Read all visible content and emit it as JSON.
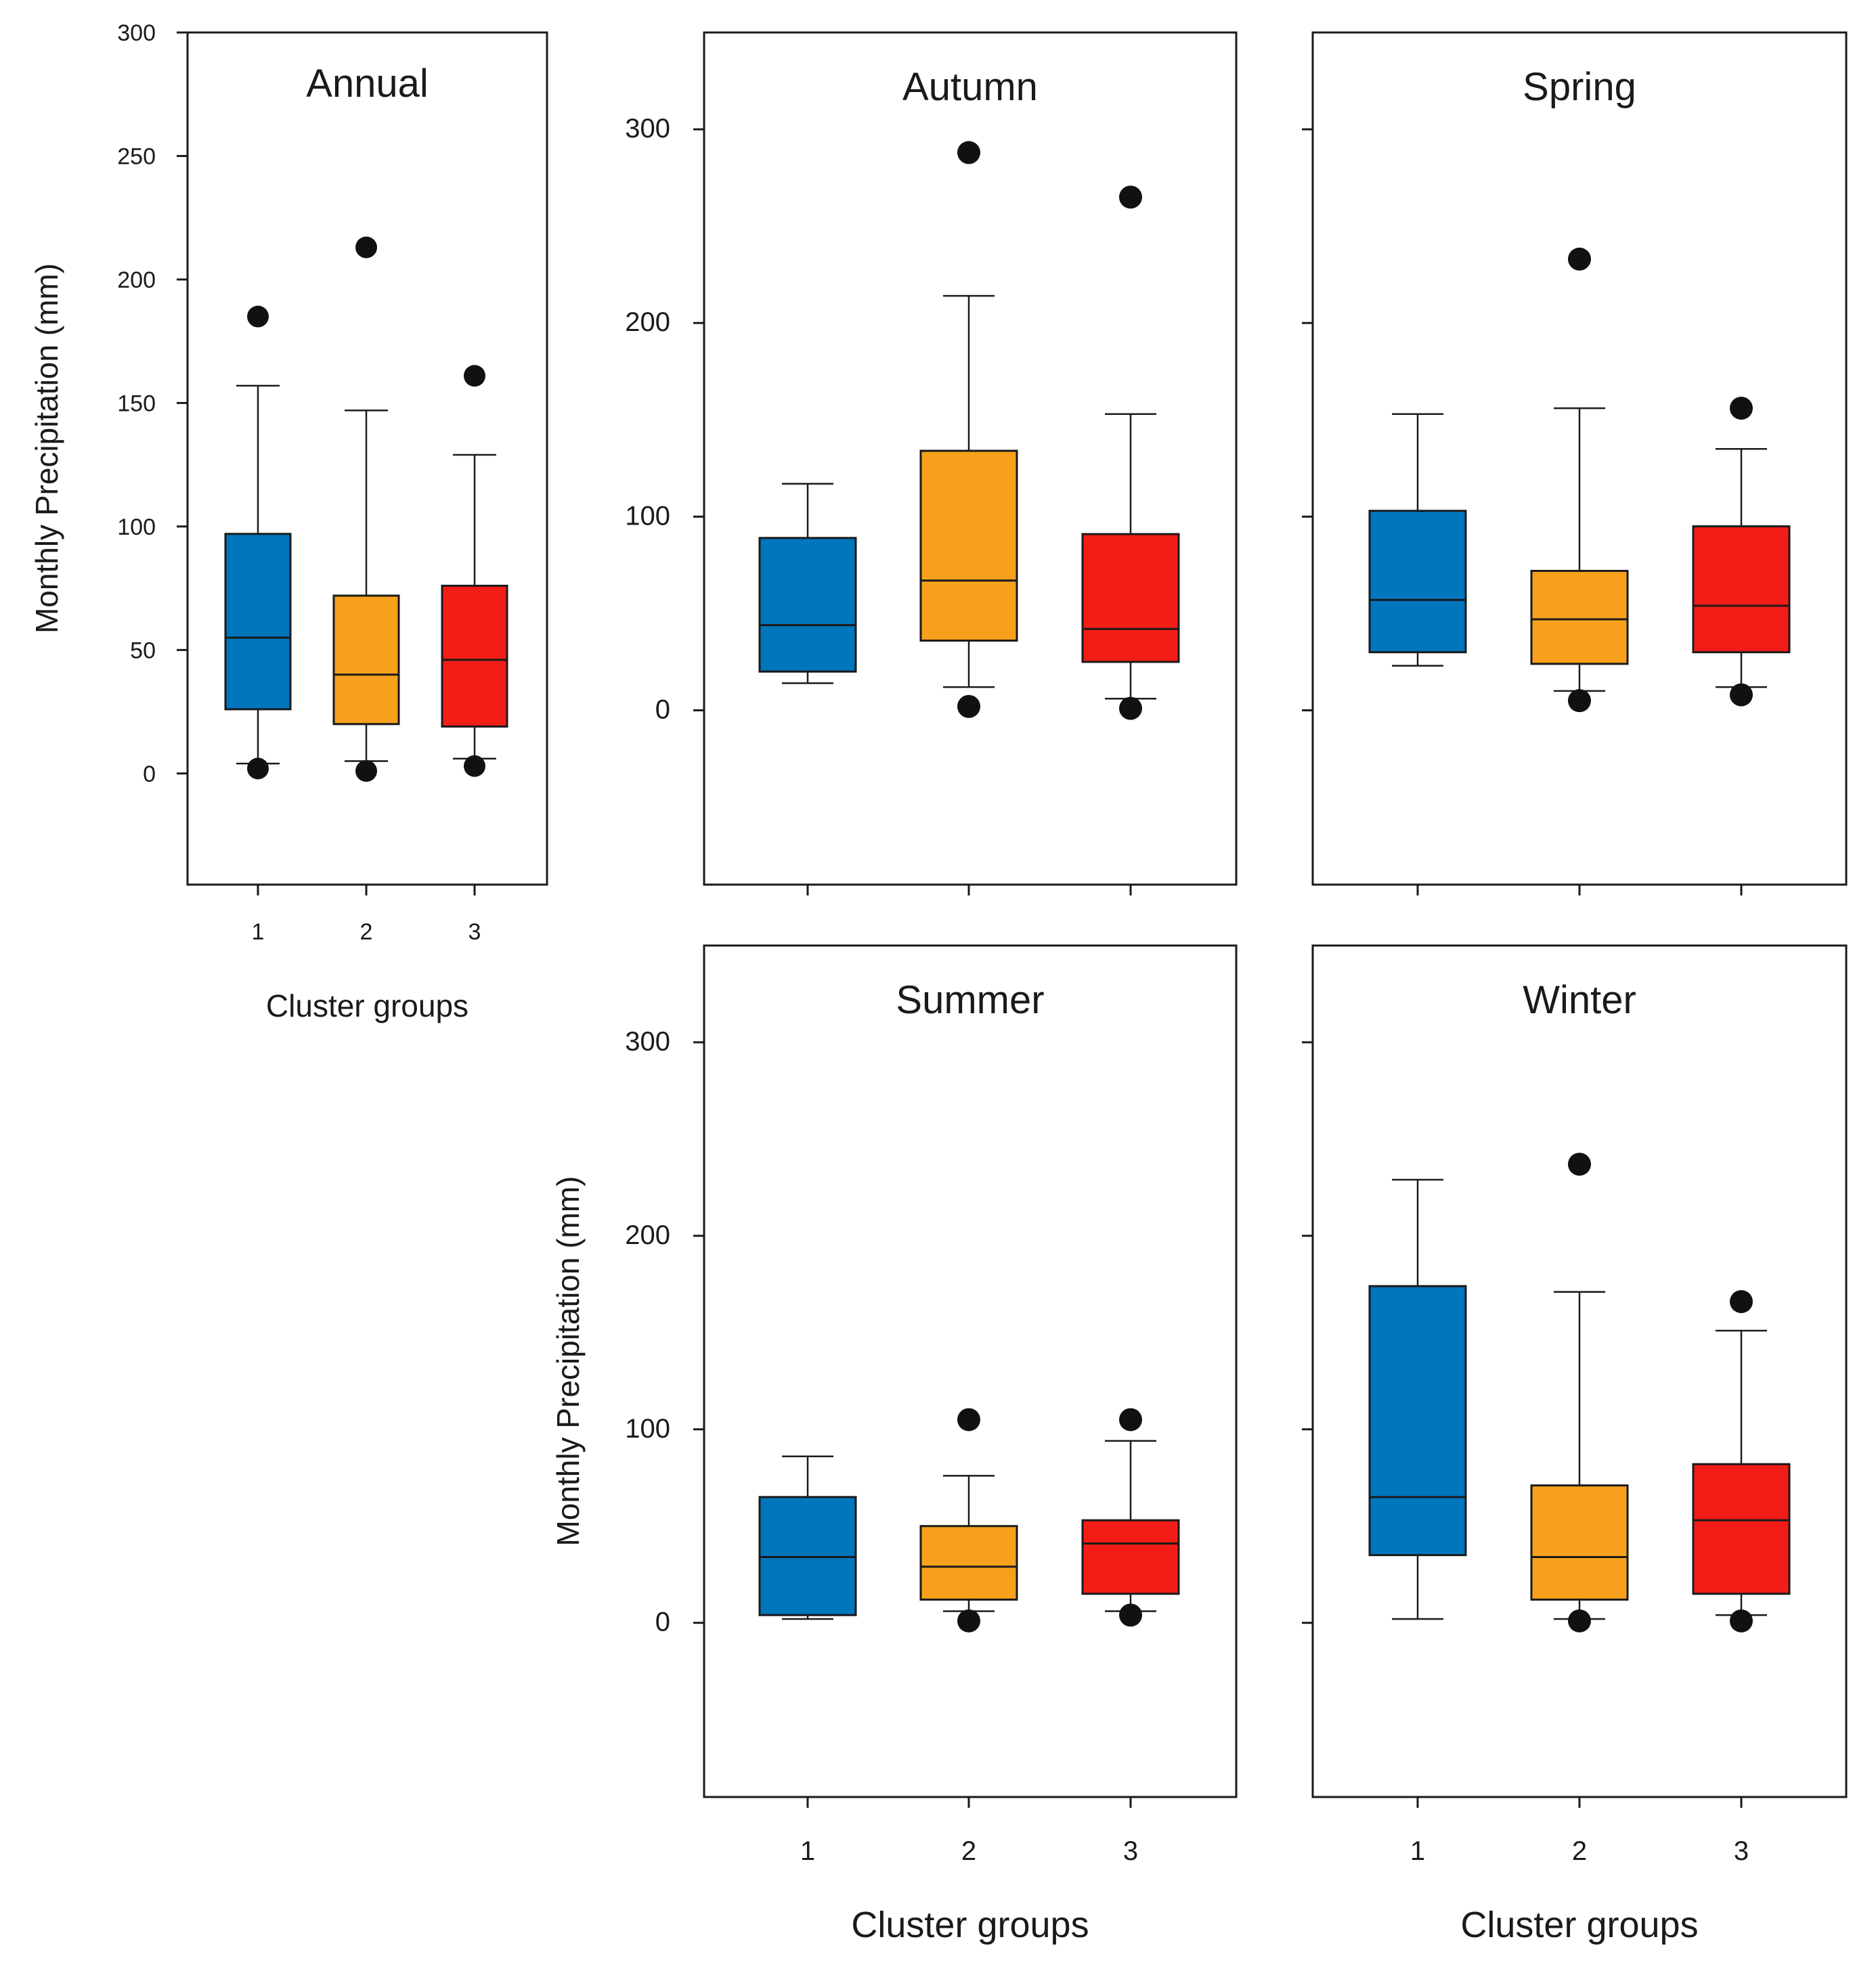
{
  "colors": {
    "group1": "#0076bd",
    "group2": "#f7a01b",
    "group3": "#f31c17",
    "outlier": "#111111"
  },
  "chart_data": [
    {
      "type": "boxplot",
      "title": "Annual",
      "xlabel": "Cluster groups",
      "ylabel": "Monthly Precipitation (mm)",
      "ylim": [
        -45,
        300
      ],
      "yticks": [
        0,
        50,
        100,
        150,
        200,
        250,
        300
      ],
      "categories": [
        "1",
        "2",
        "3"
      ],
      "groups": [
        {
          "name": "1",
          "whisker_low": 4,
          "q1": 26,
          "median": 55,
          "q3": 97,
          "whisker_high": 157,
          "outliers": [
            2,
            185
          ]
        },
        {
          "name": "2",
          "whisker_low": 5,
          "q1": 20,
          "median": 40,
          "q3": 72,
          "whisker_high": 147,
          "outliers": [
            1,
            213
          ]
        },
        {
          "name": "3",
          "whisker_low": 6,
          "q1": 19,
          "median": 46,
          "q3": 76,
          "whisker_high": 129,
          "outliers": [
            3,
            161
          ]
        }
      ]
    },
    {
      "type": "boxplot",
      "title": "Autumn",
      "xlabel": "",
      "ylabel": "",
      "ylim": [
        -90,
        350
      ],
      "yticks": [
        0,
        100,
        200,
        300
      ],
      "categories": [
        "1",
        "2",
        "3"
      ],
      "groups": [
        {
          "name": "1",
          "whisker_low": 14,
          "q1": 20,
          "median": 44,
          "q3": 89,
          "whisker_high": 117,
          "outliers": []
        },
        {
          "name": "2",
          "whisker_low": 12,
          "q1": 36,
          "median": 67,
          "q3": 134,
          "whisker_high": 214,
          "outliers": [
            2,
            288
          ]
        },
        {
          "name": "3",
          "whisker_low": 6,
          "q1": 25,
          "median": 42,
          "q3": 91,
          "whisker_high": 153,
          "outliers": [
            1,
            265
          ]
        }
      ]
    },
    {
      "type": "boxplot",
      "title": "Spring",
      "xlabel": "",
      "ylabel": "",
      "ylim": [
        -90,
        350
      ],
      "yticks": [
        0,
        100,
        200,
        300
      ],
      "categories": [
        "1",
        "2",
        "3"
      ],
      "groups": [
        {
          "name": "1",
          "whisker_low": 23,
          "q1": 30,
          "median": 57,
          "q3": 103,
          "whisker_high": 153,
          "outliers": []
        },
        {
          "name": "2",
          "whisker_low": 10,
          "q1": 24,
          "median": 47,
          "q3": 72,
          "whisker_high": 156,
          "outliers": [
            5,
            233
          ]
        },
        {
          "name": "3",
          "whisker_low": 12,
          "q1": 30,
          "median": 54,
          "q3": 95,
          "whisker_high": 135,
          "outliers": [
            8,
            156
          ]
        }
      ]
    },
    {
      "type": "boxplot",
      "title": "Summer",
      "xlabel": "Cluster groups",
      "ylabel": "Monthly Precipitation (mm)",
      "ylim": [
        -90,
        350
      ],
      "yticks": [
        0,
        100,
        200,
        300
      ],
      "categories": [
        "1",
        "2",
        "3"
      ],
      "groups": [
        {
          "name": "1",
          "whisker_low": 2,
          "q1": 4,
          "median": 34,
          "q3": 65,
          "whisker_high": 86,
          "outliers": []
        },
        {
          "name": "2",
          "whisker_low": 6,
          "q1": 12,
          "median": 29,
          "q3": 50,
          "whisker_high": 76,
          "outliers": [
            1,
            105
          ]
        },
        {
          "name": "3",
          "whisker_low": 6,
          "q1": 15,
          "median": 41,
          "q3": 53,
          "whisker_high": 94,
          "outliers": [
            4,
            105
          ]
        }
      ]
    },
    {
      "type": "boxplot",
      "title": "Winter",
      "xlabel": "Cluster groups",
      "ylabel": "",
      "ylim": [
        -90,
        350
      ],
      "yticks": [
        0,
        100,
        200,
        300
      ],
      "categories": [
        "1",
        "2",
        "3"
      ],
      "groups": [
        {
          "name": "1",
          "whisker_low": 2,
          "q1": 35,
          "median": 65,
          "q3": 174,
          "whisker_high": 229,
          "outliers": []
        },
        {
          "name": "2",
          "whisker_low": 2,
          "q1": 12,
          "median": 34,
          "q3": 71,
          "whisker_high": 171,
          "outliers": [
            1,
            237
          ]
        },
        {
          "name": "3",
          "whisker_low": 4,
          "q1": 15,
          "median": 53,
          "q3": 82,
          "whisker_high": 151,
          "outliers": [
            1,
            166
          ]
        }
      ]
    }
  ]
}
